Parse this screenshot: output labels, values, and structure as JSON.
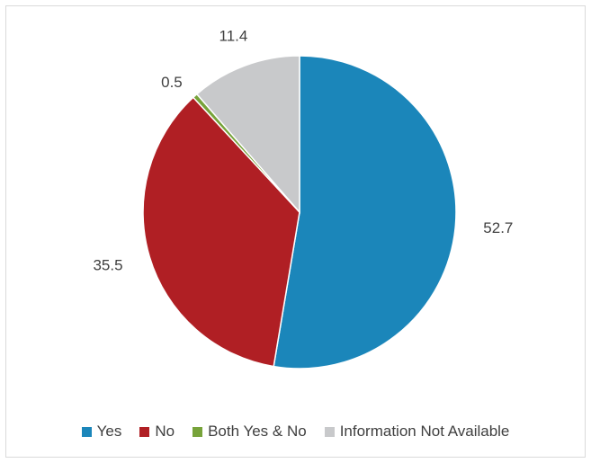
{
  "chart_data": {
    "type": "pie",
    "title": "",
    "categories": [
      "Yes",
      "No",
      "Both Yes & No",
      "Information Not Available"
    ],
    "values": [
      52.7,
      35.5,
      0.5,
      11.4
    ],
    "data_labels": [
      "52.7",
      "35.5",
      "0.5",
      "11.4"
    ],
    "colors": [
      "#1B86BA",
      "#B01F24",
      "#77A33A",
      "#C8C9CB"
    ],
    "start_angle": "12 o'clock",
    "direction": "clockwise",
    "legend_position": "bottom"
  }
}
